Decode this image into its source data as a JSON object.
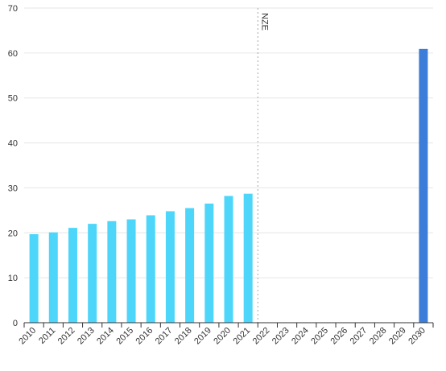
{
  "chart_data": {
    "type": "bar",
    "title": "",
    "xlabel": "",
    "ylabel": "",
    "ylim": [
      0,
      70
    ],
    "yticks": [
      0,
      10,
      20,
      30,
      40,
      50,
      60,
      70
    ],
    "grid": true,
    "categories": [
      "2010",
      "2011",
      "2012",
      "2013",
      "2014",
      "2015",
      "2016",
      "2017",
      "2018",
      "2019",
      "2020",
      "2021",
      "2022",
      "2023",
      "2024",
      "2025",
      "2026",
      "2027",
      "2028",
      "2029",
      "2030"
    ],
    "series": [
      {
        "color": "#4dd6fa",
        "values": [
          19.7,
          20.1,
          21.1,
          22.0,
          22.6,
          23.0,
          23.9,
          24.8,
          25.5,
          26.5,
          28.2,
          28.7,
          null,
          null,
          null,
          null,
          null,
          null,
          null,
          null,
          null
        ]
      },
      {
        "color": "#3c7dd9",
        "values": [
          null,
          null,
          null,
          null,
          null,
          null,
          null,
          null,
          null,
          null,
          null,
          null,
          null,
          null,
          null,
          null,
          null,
          null,
          null,
          null,
          60.9
        ]
      }
    ],
    "annotations": [
      {
        "text": "NZE",
        "x": "2022",
        "style": "dotted-vertical-line"
      }
    ]
  }
}
